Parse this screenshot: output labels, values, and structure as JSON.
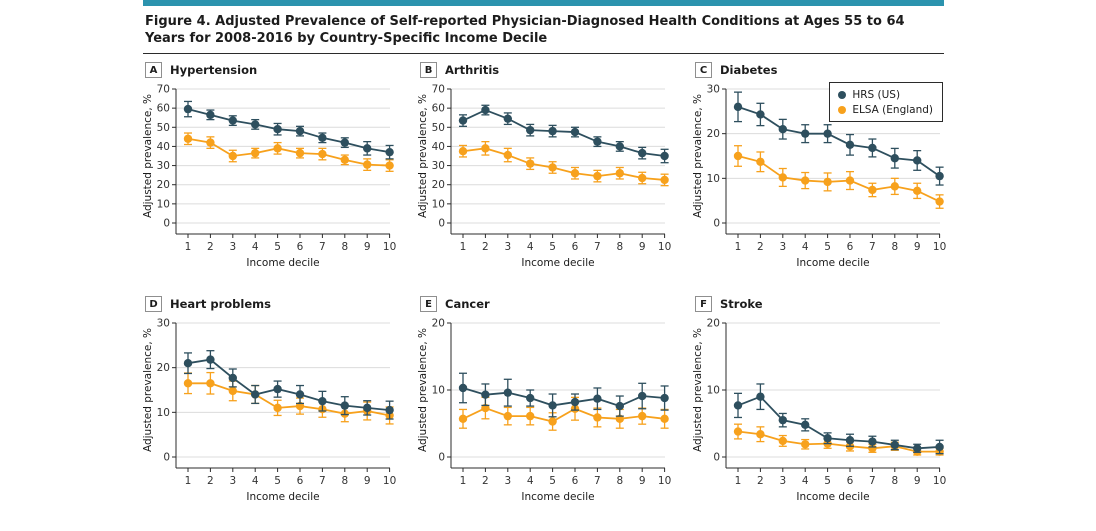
{
  "header": {
    "figure_title": "Figure 4. Adjusted Prevalence of Self-reported Physician-Diagnosed Health Conditions at Ages 55 to 64 Years for 2008-2016 by Country-Specific Income Decile"
  },
  "colors": {
    "accent_bar": "#2b93ae",
    "hrs": "#2e4f5e",
    "elsa": "#f7a11c",
    "grid": "#dcdcdc",
    "axis": "#2b2b2b"
  },
  "legend": {
    "position": "top-right of panel C",
    "items": [
      {
        "label": "HRS (US)",
        "color": "#2e4f5e"
      },
      {
        "label": "ELSA (England)",
        "color": "#f7a11c"
      }
    ]
  },
  "chart_data": [
    {
      "panel": "A",
      "title": "Hypertension",
      "type": "line",
      "x": [
        1,
        2,
        3,
        4,
        5,
        6,
        7,
        8,
        9,
        10
      ],
      "xlabel": "Income decile",
      "ylabel": "Adjusted prevalence, %",
      "ylim": [
        0,
        70
      ],
      "yticks": [
        0,
        10,
        20,
        30,
        40,
        50,
        60,
        70
      ],
      "grid": true,
      "series": [
        {
          "name": "HRS (US)",
          "color": "#2e4f5e",
          "values": [
            59.5,
            56.5,
            53.5,
            51.5,
            49,
            48,
            44.5,
            42,
            39,
            37
          ],
          "err": [
            4,
            2.5,
            2.5,
            2.5,
            3,
            2.5,
            2.5,
            2.5,
            3.5,
            3.5
          ]
        },
        {
          "name": "ELSA (England)",
          "color": "#f7a11c",
          "values": [
            44,
            42,
            35,
            36.5,
            39,
            36.5,
            36,
            33,
            30.5,
            30
          ],
          "err": [
            3,
            3,
            3,
            2.5,
            3,
            2.5,
            3,
            2.5,
            3,
            3
          ]
        }
      ]
    },
    {
      "panel": "B",
      "title": "Arthritis",
      "type": "line",
      "x": [
        1,
        2,
        3,
        4,
        5,
        6,
        7,
        8,
        9,
        10
      ],
      "xlabel": "Income decile",
      "ylabel": "Adjusted prevalence, %",
      "ylim": [
        0,
        70
      ],
      "yticks": [
        0,
        10,
        20,
        30,
        40,
        50,
        60,
        70
      ],
      "grid": true,
      "series": [
        {
          "name": "HRS (US)",
          "color": "#2e4f5e",
          "values": [
            53.5,
            59,
            54.5,
            48.5,
            48,
            47.5,
            42.5,
            40,
            36.5,
            35
          ],
          "err": [
            3,
            2.5,
            3,
            3,
            3,
            2.5,
            2.5,
            2.5,
            3,
            3.5
          ]
        },
        {
          "name": "ELSA (England)",
          "color": "#f7a11c",
          "values": [
            37.5,
            39,
            35.5,
            31,
            29,
            26,
            24.5,
            26,
            23.5,
            22.5
          ],
          "err": [
            3,
            3.5,
            3.5,
            3,
            3,
            3,
            3,
            3,
            3,
            3
          ]
        }
      ]
    },
    {
      "panel": "C",
      "title": "Diabetes",
      "type": "line",
      "has_legend": true,
      "x": [
        1,
        2,
        3,
        4,
        5,
        6,
        7,
        8,
        9,
        10
      ],
      "xlabel": "Income decile",
      "ylabel": "Adjusted prevalence, %",
      "ylim": [
        0,
        30
      ],
      "yticks": [
        0,
        10,
        20,
        30
      ],
      "grid": true,
      "series": [
        {
          "name": "HRS (US)",
          "color": "#2e4f5e",
          "values": [
            26,
            24.3,
            21,
            20,
            20,
            17.5,
            16.8,
            14.5,
            14,
            10.5
          ],
          "err": [
            3.3,
            2.5,
            2.2,
            2,
            2,
            2.3,
            2,
            2.2,
            2.2,
            2
          ]
        },
        {
          "name": "ELSA (England)",
          "color": "#f7a11c",
          "values": [
            15,
            13.7,
            10.2,
            9.5,
            9.2,
            9.5,
            7.4,
            8.2,
            7.2,
            4.8
          ],
          "err": [
            2.3,
            2.2,
            2,
            1.8,
            2,
            2,
            1.5,
            1.8,
            1.7,
            1.5
          ]
        }
      ]
    },
    {
      "panel": "D",
      "title": "Heart problems",
      "type": "line",
      "x": [
        1,
        2,
        3,
        4,
        5,
        6,
        7,
        8,
        9,
        10
      ],
      "xlabel": "Income decile",
      "ylabel": "Adjusted prevalence, %",
      "ylim": [
        0,
        30
      ],
      "yticks": [
        0,
        10,
        20,
        30
      ],
      "grid": true,
      "series": [
        {
          "name": "HRS (US)",
          "color": "#2e4f5e",
          "values": [
            21,
            21.8,
            17.7,
            14,
            15.2,
            14,
            12.5,
            11.5,
            11,
            10.5
          ],
          "err": [
            2.3,
            2,
            2,
            2,
            1.8,
            2,
            2.2,
            2,
            1.6,
            2
          ]
        },
        {
          "name": "ELSA (England)",
          "color": "#f7a11c",
          "values": [
            16.5,
            16.5,
            14.8,
            14,
            11,
            11.4,
            10.7,
            9.7,
            10.3,
            9.3
          ],
          "err": [
            2.3,
            2.4,
            2.2,
            2,
            1.7,
            1.8,
            1.8,
            1.8,
            2,
            1.9
          ]
        }
      ]
    },
    {
      "panel": "E",
      "title": "Cancer",
      "type": "line",
      "x": [
        1,
        2,
        3,
        4,
        5,
        6,
        7,
        8,
        9,
        10
      ],
      "xlabel": "Income decile",
      "ylabel": "Adjusted prevalence, %",
      "ylim": [
        0,
        20
      ],
      "yticks": [
        0,
        10,
        20
      ],
      "grid": true,
      "series": [
        {
          "name": "HRS (US)",
          "color": "#2e4f5e",
          "values": [
            10.3,
            9.3,
            9.6,
            8.8,
            7.7,
            8.2,
            8.7,
            7.6,
            9.1,
            8.8
          ],
          "err": [
            2.2,
            1.6,
            2,
            1.2,
            1.7,
            1.2,
            1.6,
            1.5,
            1.9,
            1.8
          ]
        },
        {
          "name": "ELSA (England)",
          "color": "#f7a11c",
          "values": [
            5.7,
            7.3,
            6.1,
            6.1,
            5.3,
            7.2,
            5.9,
            5.7,
            6.1,
            5.7
          ],
          "err": [
            1.4,
            1.6,
            1.3,
            1.3,
            1.3,
            1.7,
            1.4,
            1.4,
            1.2,
            1.4
          ]
        }
      ]
    },
    {
      "panel": "F",
      "title": "Stroke",
      "type": "line",
      "x": [
        1,
        2,
        3,
        4,
        5,
        6,
        7,
        8,
        9,
        10
      ],
      "xlabel": "Income decile",
      "ylabel": "Adjusted prevalence, %",
      "ylim": [
        0,
        20
      ],
      "yticks": [
        0,
        10,
        20
      ],
      "grid": true,
      "series": [
        {
          "name": "HRS (US)",
          "color": "#2e4f5e",
          "values": [
            7.7,
            9,
            5.5,
            4.8,
            2.8,
            2.5,
            2.3,
            1.8,
            1.3,
            1.5
          ],
          "err": [
            1.8,
            1.9,
            1,
            0.9,
            0.8,
            0.9,
            0.8,
            0.7,
            0.6,
            1
          ]
        },
        {
          "name": "ELSA (England)",
          "color": "#f7a11c",
          "values": [
            3.8,
            3.4,
            2.4,
            1.9,
            2,
            1.6,
            1.3,
            1.6,
            0.8,
            0.8
          ],
          "err": [
            1.1,
            1.1,
            0.8,
            0.7,
            0.7,
            0.7,
            0.6,
            0.6,
            0.5,
            0.5
          ]
        }
      ]
    }
  ]
}
